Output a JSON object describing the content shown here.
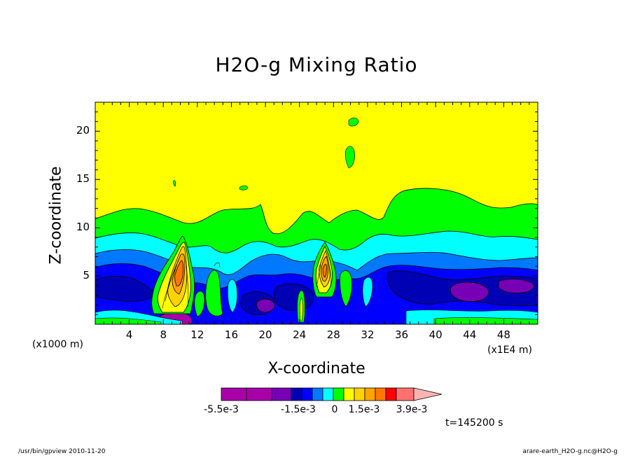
{
  "chart_data": {
    "type": "heatmap",
    "title": "H2O-g Mixing Ratio",
    "xlabel": "X-coordinate",
    "ylabel": "Z-coordinate",
    "x_unit_label": "(x1000 m)",
    "x_scale_label": "(x1E4 m)",
    "xlim": [
      0,
      52
    ],
    "ylim": [
      0,
      23
    ],
    "x_ticks": [
      "4",
      "8",
      "12",
      "16",
      "20",
      "24",
      "28",
      "32",
      "36",
      "40",
      "44",
      "48"
    ],
    "y_ticks": [
      "5",
      "10",
      "15",
      "20"
    ],
    "colorbar": {
      "colors": [
        "#a800a8",
        "#a800a8",
        "#7800b4",
        "#0000b4",
        "#0000ff",
        "#0078ff",
        "#00ffff",
        "#00ff00",
        "#ffff00",
        "#ffd200",
        "#ffa500",
        "#ff7800",
        "#ff0000",
        "#ff7070",
        "#ffb4b4"
      ],
      "labels": [
        "-5.5e-3",
        "-1.5e-3",
        "0",
        "1.5e-3",
        "3.9e-3"
      ]
    },
    "time_label": "t=145200 s"
  },
  "footer": {
    "left": "/usr/bin/gpview  2010-11-20",
    "right": "arare-earth_H2O-g.nc@H2O-g"
  }
}
